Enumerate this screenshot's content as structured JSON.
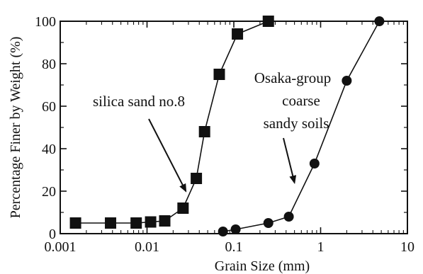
{
  "chart_data": {
    "type": "scatter",
    "title": "",
    "xlabel": "Grain Size (mm)",
    "ylabel": "Percentage Finer by Weight (%)",
    "xscale": "log",
    "xlim": [
      0.001,
      10
    ],
    "ylim": [
      0,
      100
    ],
    "x_ticks": [
      0.001,
      0.01,
      0.1,
      1,
      10
    ],
    "x_tick_labels": [
      "0.001",
      "0.01",
      "0.1",
      "1",
      "10"
    ],
    "y_ticks": [
      0,
      20,
      40,
      60,
      80,
      100
    ],
    "y_tick_labels": [
      "0",
      "20",
      "40",
      "60",
      "80",
      "100"
    ],
    "grid": false,
    "series": [
      {
        "name": "silica sand no.8",
        "marker": "square",
        "line": true,
        "x": [
          0.0015,
          0.0038,
          0.0075,
          0.011,
          0.016,
          0.026,
          0.037,
          0.046,
          0.068,
          0.11,
          0.25
        ],
        "y": [
          5,
          5,
          5,
          5.5,
          6,
          12,
          26,
          48,
          75,
          94,
          100
        ]
      },
      {
        "name": "Osaka-group coarse sandy soils",
        "marker": "circle",
        "line": true,
        "x": [
          0.075,
          0.105,
          0.25,
          0.43,
          0.85,
          2.0,
          4.75
        ],
        "y": [
          1,
          2,
          5,
          8,
          33,
          72,
          100
        ]
      }
    ],
    "annotations": [
      {
        "lines": [
          "silica sand no.8"
        ],
        "arrow_to": [
          0.028,
          20
        ],
        "series": 0
      },
      {
        "lines": [
          "Osaka-group",
          "coarse",
          "sandy soils"
        ],
        "arrow_to": [
          0.5,
          24
        ],
        "series": 1
      }
    ],
    "colors": {
      "line": "#111111",
      "marker": "#111111",
      "axes": "#111111"
    }
  }
}
